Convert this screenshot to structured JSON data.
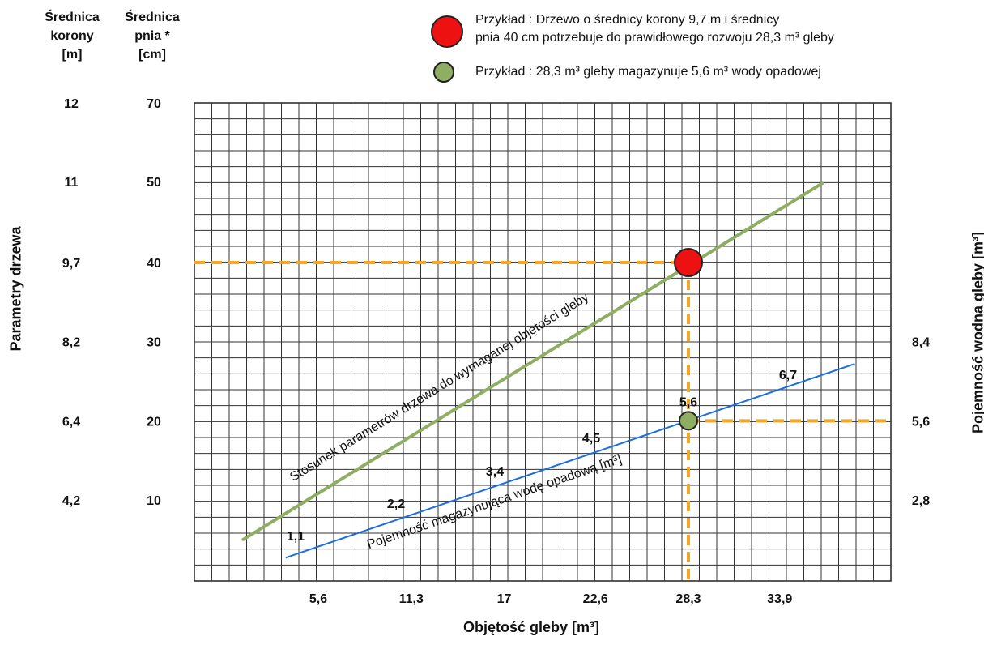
{
  "headers": {
    "crown": [
      "Średnica",
      "korony",
      "[m]"
    ],
    "trunk": [
      "Średnica",
      "pnia *",
      "[cm]"
    ]
  },
  "legend": [
    {
      "marker": "red-circle",
      "color": "#ee1111",
      "line1": "Przykład : Drzewo o średnicy korony 9,7 m i średnicy",
      "line2": "pnia 40 cm potrzebuje do prawidłowego rozwoju 28,3 m³ gleby"
    },
    {
      "marker": "green-circle",
      "color": "#8fae63",
      "line1": "Przykład : 28,3 m³ gleby magazynuje 5,6 m³ wody opadowej"
    }
  ],
  "axes": {
    "left_title": "Parametry drzewa",
    "right_title": "Pojemność wodna gleby [m³]",
    "x_title": "Objętość gleby [m³]"
  },
  "chart_data": {
    "type": "line",
    "x_ticks": [
      "5,6",
      "11,3",
      "17",
      "22,6",
      "28,3",
      "33,9"
    ],
    "x_tick_values": [
      5.6,
      11.3,
      17,
      22.6,
      28.3,
      33.9
    ],
    "y_rows": [
      {
        "crown": "12",
        "trunk": "70"
      },
      {
        "crown": "11",
        "trunk": "50"
      },
      {
        "crown": "9,7",
        "trunk": "40"
      },
      {
        "crown": "8,2",
        "trunk": "30"
      },
      {
        "crown": "6,4",
        "trunk": "20"
      },
      {
        "crown": "4,2",
        "trunk": "10"
      }
    ],
    "right_ticks": [
      {
        "label": "8,4",
        "row": "30"
      },
      {
        "label": "5,6",
        "row": "20"
      },
      {
        "label": "2,8",
        "row": "10"
      }
    ],
    "series": [
      {
        "name": "Stosunek parametrów drzewa do wymaganej objętości gleby",
        "color": "#8fae63",
        "points": [
          [
            1.0,
            5
          ],
          [
            36.5,
            50
          ]
        ]
      },
      {
        "name": "Pojemność magazynująca wodę opadową [m³]",
        "color": "#1a6fe0",
        "labels": [
          "1,1",
          "2,2",
          "3,4",
          "4,5",
          "5,6",
          "6,7"
        ],
        "points": [
          [
            3.6,
            2.7
          ],
          [
            38.5,
            27.2
          ]
        ]
      }
    ],
    "reference": {
      "color": "#f5a623",
      "x": 28.3,
      "y_tree": 40,
      "y_water": 20,
      "tree_point_label": "",
      "water_point_label": "5,6"
    },
    "grid": true
  }
}
